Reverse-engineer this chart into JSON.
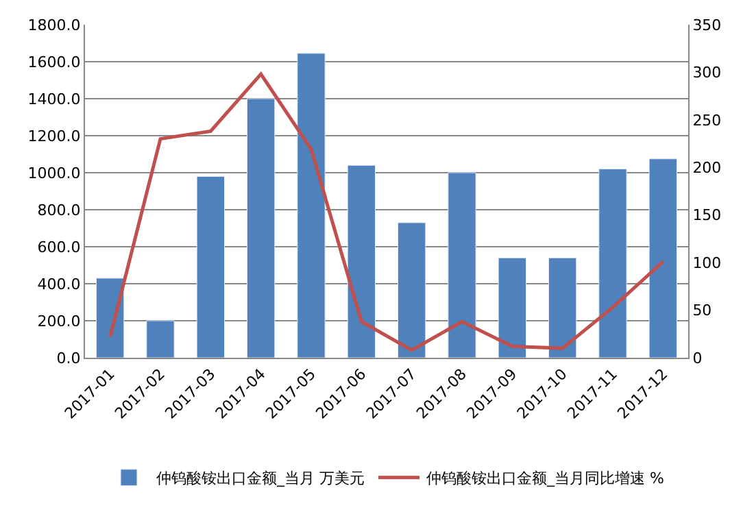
{
  "chart_data": {
    "type": "bar",
    "categories": [
      "2017-01",
      "2017-02",
      "2017-03",
      "2017-04",
      "2017-05",
      "2017-06",
      "2017-07",
      "2017-08",
      "2017-09",
      "2017-10",
      "2017-11",
      "2017-12"
    ],
    "series": [
      {
        "name": "仲钨酸铵出口金额_当月 万美元",
        "color": "#4f81bd",
        "values": [
          430,
          200,
          980,
          1400,
          1645,
          1040,
          730,
          1000,
          540,
          540,
          1020,
          1075
        ]
      },
      {
        "name": "仲钨酸铵出口金额_当月同比增速 %",
        "type": "line",
        "axis": "y2",
        "color": "#c0504d",
        "values": [
          22,
          230,
          238,
          298,
          219,
          38,
          8,
          38,
          12,
          10,
          53,
          101
        ]
      }
    ],
    "ylim": [
      0,
      1800
    ],
    "yticks": [
      {
        "value": 0,
        "label": "0.0"
      },
      {
        "value": 200,
        "label": "200.0"
      },
      {
        "value": 400,
        "label": "400.0"
      },
      {
        "value": 600,
        "label": "600.0"
      },
      {
        "value": 800,
        "label": "800.0"
      },
      {
        "value": 1000,
        "label": "1000.0"
      },
      {
        "value": 1200,
        "label": "1200.0"
      },
      {
        "value": 1400,
        "label": "1400.0"
      },
      {
        "value": 1600,
        "label": "1600.0"
      },
      {
        "value": 1800,
        "label": "1800.0"
      }
    ],
    "y2lim": [
      0,
      350
    ],
    "y2ticks": [
      0,
      50,
      100,
      150,
      200,
      250,
      300,
      350
    ],
    "grid": "y",
    "legend": "bottom",
    "marker": "none",
    "line_style": "solid"
  }
}
